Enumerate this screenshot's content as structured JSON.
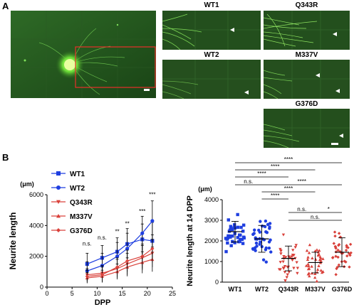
{
  "panels": {
    "a": "A",
    "b": "B"
  },
  "micrographs": {
    "labels": [
      "WT1",
      "Q343R",
      "WT2",
      "M337V",
      "G376D"
    ]
  },
  "left_chart": {
    "unit": "(μm)",
    "ylabel": "Neurite length",
    "xlabel": "DPP",
    "yticks": [
      "0",
      "2000",
      "4000",
      "6000"
    ],
    "xticks": [
      "0",
      "5",
      "10",
      "15",
      "20",
      "25"
    ],
    "annotations": [
      "n.s.",
      "n.s.",
      "**",
      "**",
      "***",
      "***"
    ]
  },
  "right_chart": {
    "unit": "(μm)",
    "ylabel": "Neurite length at 14 DPP",
    "yticks": [
      "0",
      "1000",
      "2000",
      "3000",
      "4000"
    ],
    "categories": [
      "WT1",
      "WT2",
      "Q343R",
      "M337V",
      "G376D"
    ],
    "brackets": [
      "****",
      "****",
      "****",
      "n.s.",
      "****",
      "****",
      "****",
      "n.s.",
      "*",
      "n.s."
    ]
  },
  "colors": {
    "wt": "#1f3fe0",
    "mut": "#d9403a",
    "green": "#3cb52a"
  },
  "chart_data": [
    {
      "type": "line",
      "x": [
        8,
        11,
        14,
        16,
        19,
        21
      ],
      "xlim": [
        0,
        25
      ],
      "ylim": [
        0,
        6000
      ],
      "series": [
        {
          "name": "WT1",
          "values": [
            1500,
            1900,
            2300,
            2800,
            3100,
            3000
          ],
          "err": [
            700,
            800,
            900,
            1000,
            1000,
            1200
          ],
          "marker": "square",
          "color": "#1f3fe0"
        },
        {
          "name": "WT2",
          "values": [
            1050,
            1400,
            2000,
            2500,
            3500,
            4300
          ],
          "err": [
            600,
            800,
            900,
            1000,
            1100,
            1300
          ],
          "marker": "circle",
          "color": "#1f3fe0"
        },
        {
          "name": "Q343R",
          "values": [
            800,
            900,
            1200,
            1500,
            1900,
            2200
          ],
          "err": [
            400,
            500,
            600,
            700,
            800,
            900
          ],
          "marker": "triangle-down",
          "color": "#d9403a"
        },
        {
          "name": "M337V",
          "values": [
            600,
            700,
            1000,
            1300,
            1600,
            1800
          ],
          "err": [
            350,
            400,
            500,
            600,
            700,
            800
          ],
          "marker": "triangle-up",
          "color": "#d9403a"
        },
        {
          "name": "G376D",
          "values": [
            700,
            800,
            1300,
            1700,
            2000,
            2500
          ],
          "err": [
            400,
            500,
            600,
            700,
            800,
            900
          ],
          "marker": "diamond",
          "color": "#d9403a"
        }
      ]
    },
    {
      "type": "scatter",
      "categories": [
        "WT1",
        "WT2",
        "Q343R",
        "M337V",
        "G376D"
      ],
      "ylim": [
        0,
        4000
      ],
      "means": [
        2450,
        2100,
        1150,
        950,
        1450
      ],
      "sd": [
        500,
        650,
        600,
        500,
        700
      ]
    }
  ]
}
